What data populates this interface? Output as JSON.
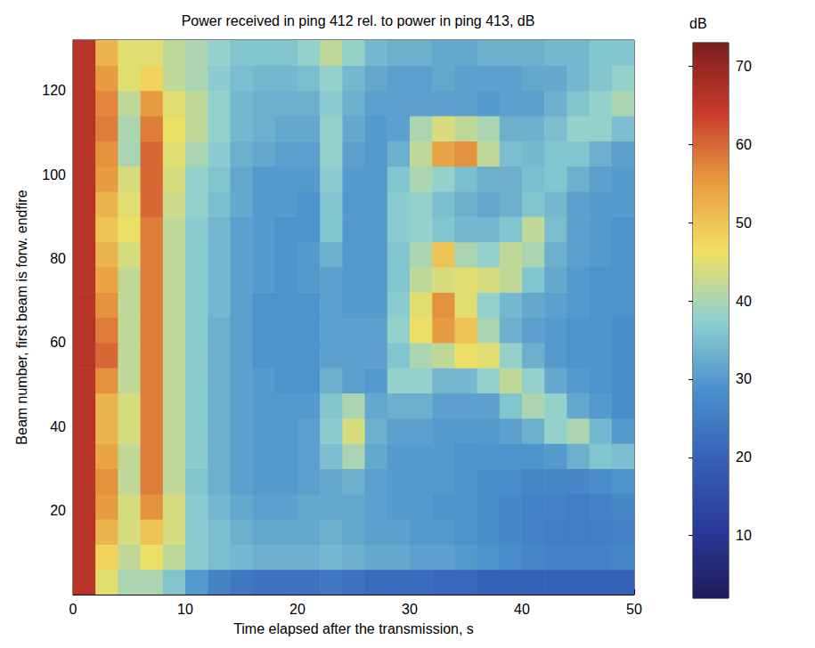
{
  "chart_data": {
    "type": "heatmap",
    "title": "Power received in ping 412 rel. to power in ping 413, dB",
    "x_label": "Time elapsed after the transmission, s",
    "y_label": "Beam number, first beam is forw. endfire",
    "xlim": [
      0,
      50
    ],
    "xticks": [
      0,
      10,
      20,
      30,
      40,
      50
    ],
    "ylim": [
      0,
      132
    ],
    "yticks": [
      20,
      40,
      60,
      80,
      100,
      120
    ],
    "colorbar_label": "dB",
    "color_range": [
      2,
      73
    ],
    "color_ticks": [
      10,
      20,
      30,
      40,
      50,
      60,
      70
    ],
    "x_edges": [
      0,
      2,
      4,
      6,
      8,
      10,
      12,
      14,
      16,
      18,
      20,
      22,
      24,
      26,
      28,
      30,
      32,
      34,
      36,
      38,
      40,
      42,
      44,
      46,
      48,
      50
    ],
    "y_edges": [
      0,
      6,
      12,
      18,
      24,
      30,
      36,
      42,
      48,
      54,
      60,
      66,
      72,
      78,
      84,
      90,
      96,
      102,
      108,
      114,
      120,
      126,
      132
    ],
    "cells": [
      [
        66,
        45,
        40,
        40,
        36,
        30,
        26,
        24,
        23,
        23,
        23,
        24,
        23,
        22,
        22,
        22,
        21,
        21,
        20,
        20,
        20,
        20,
        20,
        20,
        20
      ],
      [
        66,
        48,
        42,
        46,
        42,
        37,
        35,
        34,
        33,
        33,
        33,
        34,
        33,
        32,
        32,
        31,
        31,
        30,
        29,
        28,
        27,
        26,
        26,
        26,
        27
      ],
      [
        66,
        52,
        44,
        50,
        44,
        37,
        35,
        33,
        32,
        32,
        32,
        33,
        32,
        31,
        31,
        30,
        30,
        29,
        28,
        27,
        26,
        25,
        25,
        25,
        26
      ],
      [
        66,
        55,
        44,
        56,
        44,
        37,
        34,
        32,
        31,
        31,
        32,
        32,
        32,
        31,
        30,
        30,
        29,
        29,
        28,
        27,
        26,
        26,
        25,
        26,
        27
      ],
      [
        66,
        56,
        42,
        58,
        42,
        36,
        33,
        31,
        30,
        30,
        31,
        32,
        33,
        31,
        30,
        30,
        30,
        29,
        28,
        28,
        27,
        27,
        27,
        28,
        29
      ],
      [
        66,
        54,
        42,
        58,
        42,
        37,
        33,
        31,
        30,
        30,
        31,
        35,
        40,
        32,
        30,
        30,
        30,
        29,
        29,
        29,
        29,
        30,
        33,
        36,
        35
      ],
      [
        66,
        52,
        44,
        58,
        42,
        37,
        33,
        31,
        30,
        30,
        31,
        37,
        44,
        33,
        31,
        31,
        30,
        30,
        30,
        31,
        33,
        38,
        40,
        34,
        30
      ],
      [
        66,
        52,
        44,
        58,
        42,
        37,
        33,
        31,
        30,
        30,
        30,
        36,
        40,
        32,
        33,
        33,
        31,
        31,
        31,
        36,
        40,
        38,
        32,
        30,
        28
      ],
      [
        66,
        56,
        42,
        58,
        42,
        37,
        33,
        31,
        30,
        29,
        29,
        33,
        31,
        30,
        38,
        38,
        34,
        34,
        38,
        42,
        38,
        32,
        30,
        29,
        28
      ],
      [
        66,
        60,
        42,
        58,
        42,
        37,
        33,
        31,
        29,
        29,
        29,
        31,
        31,
        31,
        36,
        40,
        42,
        46,
        45,
        38,
        33,
        30,
        29,
        29,
        28
      ],
      [
        66,
        58,
        42,
        58,
        42,
        37,
        33,
        31,
        29,
        29,
        29,
        31,
        31,
        31,
        38,
        46,
        55,
        50,
        40,
        33,
        31,
        30,
        29,
        29,
        28
      ],
      [
        66,
        56,
        42,
        58,
        42,
        37,
        34,
        31,
        29,
        29,
        29,
        31,
        30,
        30,
        37,
        45,
        56,
        45,
        38,
        34,
        32,
        31,
        30,
        29,
        29
      ],
      [
        66,
        54,
        42,
        58,
        42,
        37,
        34,
        31,
        30,
        29,
        30,
        31,
        30,
        30,
        36,
        42,
        44,
        45,
        44,
        42,
        36,
        32,
        30,
        29,
        29
      ],
      [
        66,
        52,
        44,
        58,
        42,
        37,
        34,
        31,
        30,
        29,
        30,
        33,
        30,
        30,
        36,
        40,
        50,
        40,
        38,
        42,
        40,
        33,
        31,
        30,
        29
      ],
      [
        66,
        50,
        46,
        58,
        42,
        37,
        34,
        31,
        30,
        29,
        29,
        36,
        30,
        30,
        37,
        38,
        36,
        34,
        34,
        36,
        42,
        35,
        31,
        30,
        29
      ],
      [
        66,
        52,
        45,
        60,
        43,
        38,
        35,
        32,
        30,
        30,
        29,
        36,
        30,
        30,
        37,
        38,
        35,
        33,
        32,
        33,
        36,
        34,
        31,
        30,
        30
      ],
      [
        66,
        55,
        44,
        60,
        44,
        38,
        36,
        32,
        30,
        30,
        30,
        37,
        30,
        30,
        36,
        40,
        38,
        35,
        33,
        33,
        35,
        36,
        33,
        31,
        30
      ],
      [
        66,
        56,
        40,
        60,
        45,
        40,
        37,
        33,
        32,
        31,
        31,
        38,
        31,
        30,
        33,
        42,
        54,
        56,
        42,
        35,
        34,
        36,
        36,
        33,
        31
      ],
      [
        66,
        58,
        40,
        58,
        46,
        42,
        38,
        34,
        33,
        32,
        32,
        38,
        32,
        30,
        31,
        40,
        44,
        42,
        40,
        33,
        33,
        35,
        38,
        38,
        35
      ],
      [
        66,
        57,
        42,
        55,
        45,
        42,
        38,
        34,
        33,
        33,
        33,
        37,
        33,
        31,
        31,
        31,
        31,
        31,
        30,
        31,
        31,
        33,
        36,
        38,
        40
      ],
      [
        66,
        55,
        45,
        48,
        42,
        40,
        37,
        35,
        34,
        34,
        35,
        38,
        34,
        32,
        31,
        31,
        32,
        31,
        31,
        31,
        32,
        32,
        34,
        36,
        38
      ],
      [
        66,
        52,
        45,
        45,
        42,
        40,
        38,
        36,
        36,
        36,
        38,
        42,
        38,
        34,
        33,
        33,
        32,
        32,
        33,
        33,
        33,
        34,
        34,
        36,
        36
      ]
    ]
  }
}
